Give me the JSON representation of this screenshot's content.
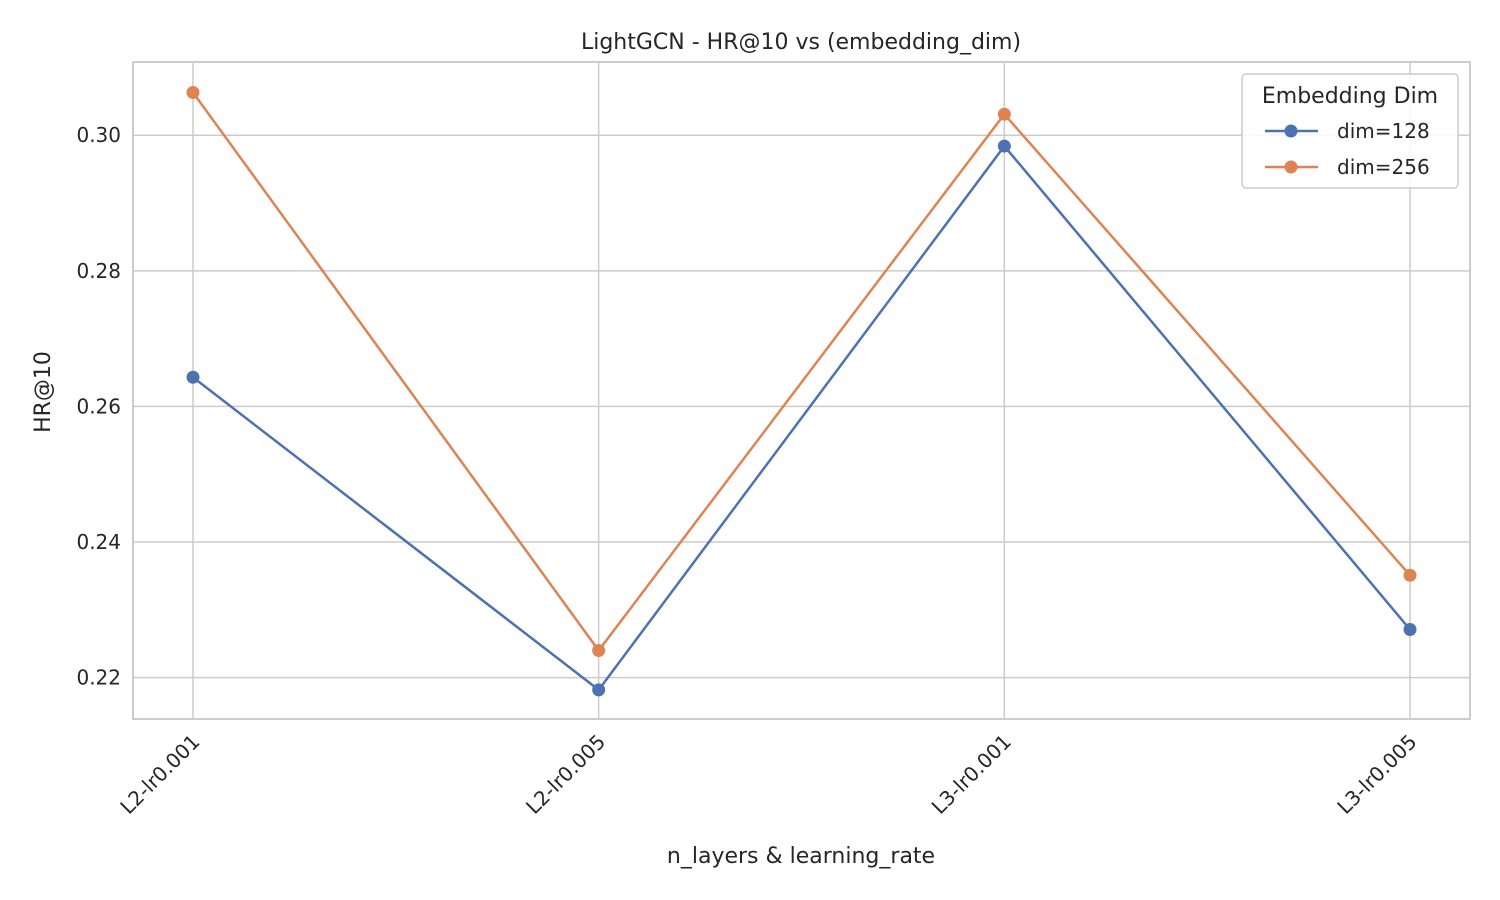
{
  "chart_data": {
    "type": "line",
    "title": "LightGCN - HR@10 vs (embedding_dim)",
    "xlabel": "n_layers & learning_rate",
    "ylabel": "HR@10",
    "categories": [
      "L2-lr0.001",
      "L2-lr0.005",
      "L3-lr0.001",
      "L3-lr0.005"
    ],
    "series": [
      {
        "name": "dim=128",
        "values": [
          0.2643,
          0.2182,
          0.2984,
          0.2271
        ],
        "color": "#4c72b0"
      },
      {
        "name": "dim=256",
        "values": [
          0.3063,
          0.224,
          0.3031,
          0.2351
        ],
        "color": "#dd8452"
      }
    ],
    "ylim": [
      0.2139,
      0.3108
    ],
    "yticks": [
      0.22,
      0.24,
      0.26,
      0.28,
      0.3
    ],
    "ytick_labels": [
      "0.22",
      "0.24",
      "0.26",
      "0.28",
      "0.30"
    ],
    "legend": {
      "title": "Embedding Dim",
      "position": "top-right"
    },
    "grid": true,
    "markers": "circle",
    "colors": {
      "grid": "#cccccc",
      "frame": "#cccccc",
      "text": "#262626"
    }
  }
}
